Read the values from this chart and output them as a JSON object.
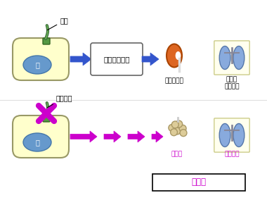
{
  "cell_fill": "#ffffcc",
  "cell_border": "#999966",
  "nucleus_fill": "#6699cc",
  "nucleus_text": "核",
  "cilia_base_fill": "#559944",
  "cilia_base_edge": "#336622",
  "cilia_line_dark": "#336633",
  "cilia_line_light": "#66aa55",
  "arrow_blue": "#3355cc",
  "arrow_magenta": "#cc00cc",
  "kidney_color": "#dd6622",
  "kidney_edge": "#aa4400",
  "cyst_fill": "#ddcc99",
  "cyst_edge": "#aa9966",
  "lung_fill": "#88aadd",
  "lung_bg": "#ffffee",
  "lung_edge": "#cccc88",
  "lung_line": "#888899",
  "box_text": "細胞の方向性",
  "label_cilia": "繊毛",
  "label_cilia_defect": "繊毛欠損",
  "label_normal_kidney": "正常な腎臓",
  "label_normal_organ": "正常な\n臓器配置",
  "label_cyst": "腎嚢胞",
  "label_situs": "内臓逆位",
  "label_disease": "繊毛病",
  "magenta": "#cc00cc",
  "black": "#000000",
  "white": "#ffffff",
  "gray_line": "#cccccc"
}
